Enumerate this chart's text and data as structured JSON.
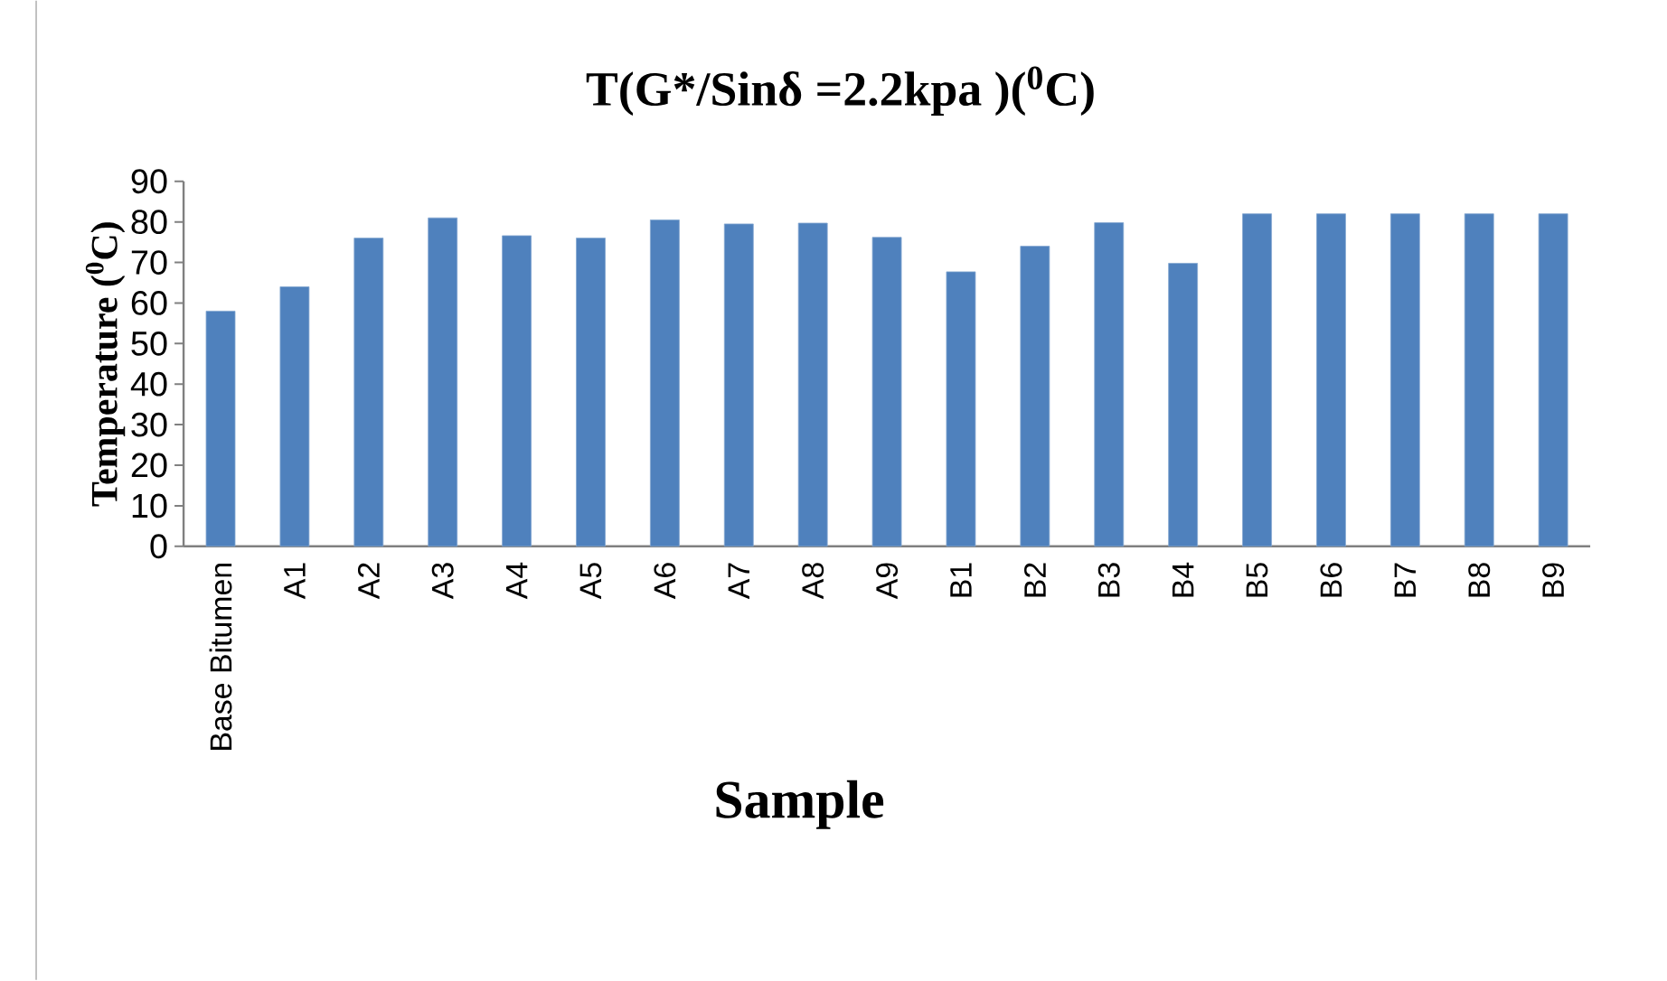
{
  "chart_data": {
    "type": "bar",
    "title": "T(G*/Sinδ =2.2kpa )($^{0}$C)",
    "xlabel": "Sample",
    "ylabel": "Temperature ($^{0}$C)",
    "categories": [
      "Base Bitumen",
      "A1",
      "A2",
      "A3",
      "A4",
      "A5",
      "A6",
      "A7",
      "A8",
      "A9",
      "B1",
      "B2",
      "B3",
      "B4",
      "B5",
      "B6",
      "B7",
      "B8",
      "B9"
    ],
    "values": [
      58,
      64,
      76,
      81,
      76.6,
      76,
      80.5,
      79.5,
      79.7,
      76.2,
      67.7,
      74,
      79.8,
      69.8,
      82,
      82,
      82,
      82,
      82
    ],
    "color": "#4f81bd",
    "ylim": [
      0,
      90
    ],
    "yticks": [
      0,
      10,
      20,
      30,
      40,
      50,
      60,
      70,
      80,
      90
    ]
  }
}
